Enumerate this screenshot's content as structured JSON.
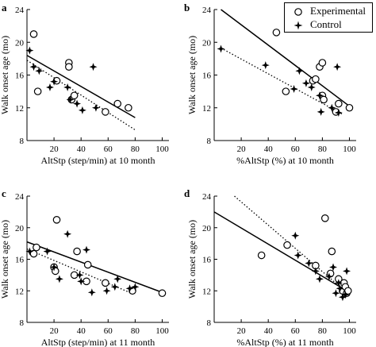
{
  "legend": {
    "experimental_label": "Experimental",
    "control_label": "Control",
    "experimental_marker": "open-circle",
    "control_marker": "four-point-star"
  },
  "colors": {
    "ink": "#000000",
    "background": "#ffffff"
  },
  "chart_data": [
    {
      "panel": "a",
      "type": "scatter",
      "xlabel": "AltStp (step/min) at 10 month",
      "ylabel": "Walk onset age (mo)",
      "xlim": [
        0,
        105
      ],
      "ylim": [
        8,
        24
      ],
      "xticks": [
        20,
        40,
        60,
        80,
        100
      ],
      "yticks": [
        8,
        12,
        16,
        20,
        24
      ],
      "grid": false,
      "series": [
        {
          "name": "Experimental",
          "marker": "circle",
          "points": [
            [
              5,
              21
            ],
            [
              8,
              14
            ],
            [
              22,
              15.3
            ],
            [
              31,
              17.5
            ],
            [
              31,
              17
            ],
            [
              33,
              13
            ],
            [
              35,
              13.5
            ],
            [
              58,
              11.5
            ],
            [
              67,
              12.5
            ],
            [
              75,
              12
            ]
          ]
        },
        {
          "name": "Control",
          "marker": "star",
          "points": [
            [
              2,
              19
            ],
            [
              5,
              17
            ],
            [
              9,
              16.5
            ],
            [
              17,
              14.5
            ],
            [
              20,
              15.2
            ],
            [
              30,
              14.5
            ],
            [
              32,
              13
            ],
            [
              37,
              12.5
            ],
            [
              41,
              11.7
            ],
            [
              49,
              17
            ],
            [
              51,
              12
            ]
          ]
        }
      ],
      "fits": [
        {
          "style": "solid",
          "from": [
            0,
            18.4
          ],
          "to": [
            80,
            10.8
          ]
        },
        {
          "style": "dotted",
          "from": [
            0,
            17.8
          ],
          "to": [
            80,
            9.3
          ]
        }
      ]
    },
    {
      "panel": "b",
      "type": "scatter",
      "xlabel": "%AltStp (%) at 10 month",
      "ylabel": "Walk onset age (mo)",
      "xlim": [
        0,
        105
      ],
      "ylim": [
        8,
        24
      ],
      "xticks": [
        20,
        40,
        60,
        80,
        100
      ],
      "yticks": [
        8,
        12,
        16,
        20,
        24
      ],
      "grid": false,
      "series": [
        {
          "name": "Experimental",
          "marker": "circle",
          "points": [
            [
              46,
              21.2
            ],
            [
              53,
              14
            ],
            [
              73,
              15.3
            ],
            [
              75,
              15.5
            ],
            [
              78,
              17
            ],
            [
              80,
              17.5
            ],
            [
              80,
              13.5
            ],
            [
              81,
              13
            ],
            [
              90,
              11.5
            ],
            [
              92,
              12.5
            ],
            [
              100,
              12
            ]
          ]
        },
        {
          "name": "Control",
          "marker": "star",
          "points": [
            [
              5,
              19.2
            ],
            [
              38,
              17.2
            ],
            [
              59,
              14.3
            ],
            [
              63,
              16.5
            ],
            [
              68,
              15
            ],
            [
              72,
              14.5
            ],
            [
              78,
              13.5
            ],
            [
              79,
              11.5
            ],
            [
              91,
              17
            ],
            [
              92,
              11.4
            ],
            [
              87,
              12
            ]
          ]
        }
      ],
      "fits": [
        {
          "style": "solid",
          "from": [
            5,
            24
          ],
          "to": [
            100,
            12.2
          ]
        },
        {
          "style": "dotted",
          "from": [
            5,
            19.3
          ],
          "to": [
            95,
            11.2
          ]
        }
      ]
    },
    {
      "panel": "c",
      "type": "scatter",
      "xlabel": "AltStp (step/min) at 11 month",
      "ylabel": "Walk onset age (mo)",
      "xlim": [
        0,
        105
      ],
      "ylim": [
        8,
        24
      ],
      "xticks": [
        20,
        40,
        60,
        80,
        100
      ],
      "yticks": [
        8,
        12,
        16,
        20,
        24
      ],
      "grid": false,
      "series": [
        {
          "name": "Experimental",
          "marker": "circle",
          "points": [
            [
              5,
              16.7
            ],
            [
              7,
              17.5
            ],
            [
              20,
              15
            ],
            [
              21,
              14.5
            ],
            [
              22,
              21
            ],
            [
              35,
              14
            ],
            [
              37,
              17
            ],
            [
              44,
              13.2
            ],
            [
              45,
              15.3
            ],
            [
              58,
              13
            ],
            [
              78,
              12
            ],
            [
              100,
              11.7
            ]
          ]
        },
        {
          "name": "Control",
          "marker": "star",
          "points": [
            [
              2,
              17
            ],
            [
              15,
              17
            ],
            [
              20,
              15
            ],
            [
              24,
              13.5
            ],
            [
              30,
              19.2
            ],
            [
              39,
              14
            ],
            [
              40,
              13.2
            ],
            [
              44,
              17.2
            ],
            [
              48,
              11.8
            ],
            [
              59,
              12
            ],
            [
              65,
              12.5
            ],
            [
              67,
              13.5
            ],
            [
              76,
              12.3
            ],
            [
              80,
              12.5
            ]
          ]
        }
      ],
      "fits": [
        {
          "style": "solid",
          "from": [
            0,
            18.2
          ],
          "to": [
            100,
            11.8
          ]
        },
        {
          "style": "dotted",
          "from": [
            0,
            17.3
          ],
          "to": [
            80,
            11.5
          ]
        }
      ]
    },
    {
      "panel": "d",
      "type": "scatter",
      "xlabel": "%AltStp (%) at 11 month",
      "ylabel": "Walk onset age (mo)",
      "xlim": [
        0,
        105
      ],
      "ylim": [
        8,
        24
      ],
      "xticks": [
        20,
        40,
        60,
        80,
        100
      ],
      "yticks": [
        8,
        12,
        16,
        20,
        24
      ],
      "grid": false,
      "series": [
        {
          "name": "Experimental",
          "marker": "circle",
          "points": [
            [
              35,
              16.5
            ],
            [
              54,
              17.8
            ],
            [
              75,
              15.2
            ],
            [
              82,
              21.2
            ],
            [
              86,
              14.2
            ],
            [
              87,
              17
            ],
            [
              92,
              13.5
            ],
            [
              95,
              12
            ],
            [
              96,
              13
            ],
            [
              97,
              12.5
            ],
            [
              98,
              11.7
            ],
            [
              99,
              12
            ]
          ]
        },
        {
          "name": "Control",
          "marker": "star",
          "points": [
            [
              60,
              19
            ],
            [
              62,
              16.5
            ],
            [
              70,
              15.5
            ],
            [
              75,
              14.5
            ],
            [
              78,
              13.5
            ],
            [
              85,
              13.8
            ],
            [
              88,
              15
            ],
            [
              90,
              11.7
            ],
            [
              92,
              13
            ],
            [
              93,
              12.3
            ],
            [
              95,
              11.2
            ],
            [
              97,
              11.5
            ],
            [
              98,
              14.5
            ]
          ]
        }
      ],
      "fits": [
        {
          "style": "solid",
          "from": [
            0,
            22
          ],
          "to": [
            100,
            11.8
          ]
        },
        {
          "style": "dotted",
          "from": [
            15,
            24
          ],
          "to": [
            100,
            11.5
          ]
        }
      ]
    }
  ]
}
